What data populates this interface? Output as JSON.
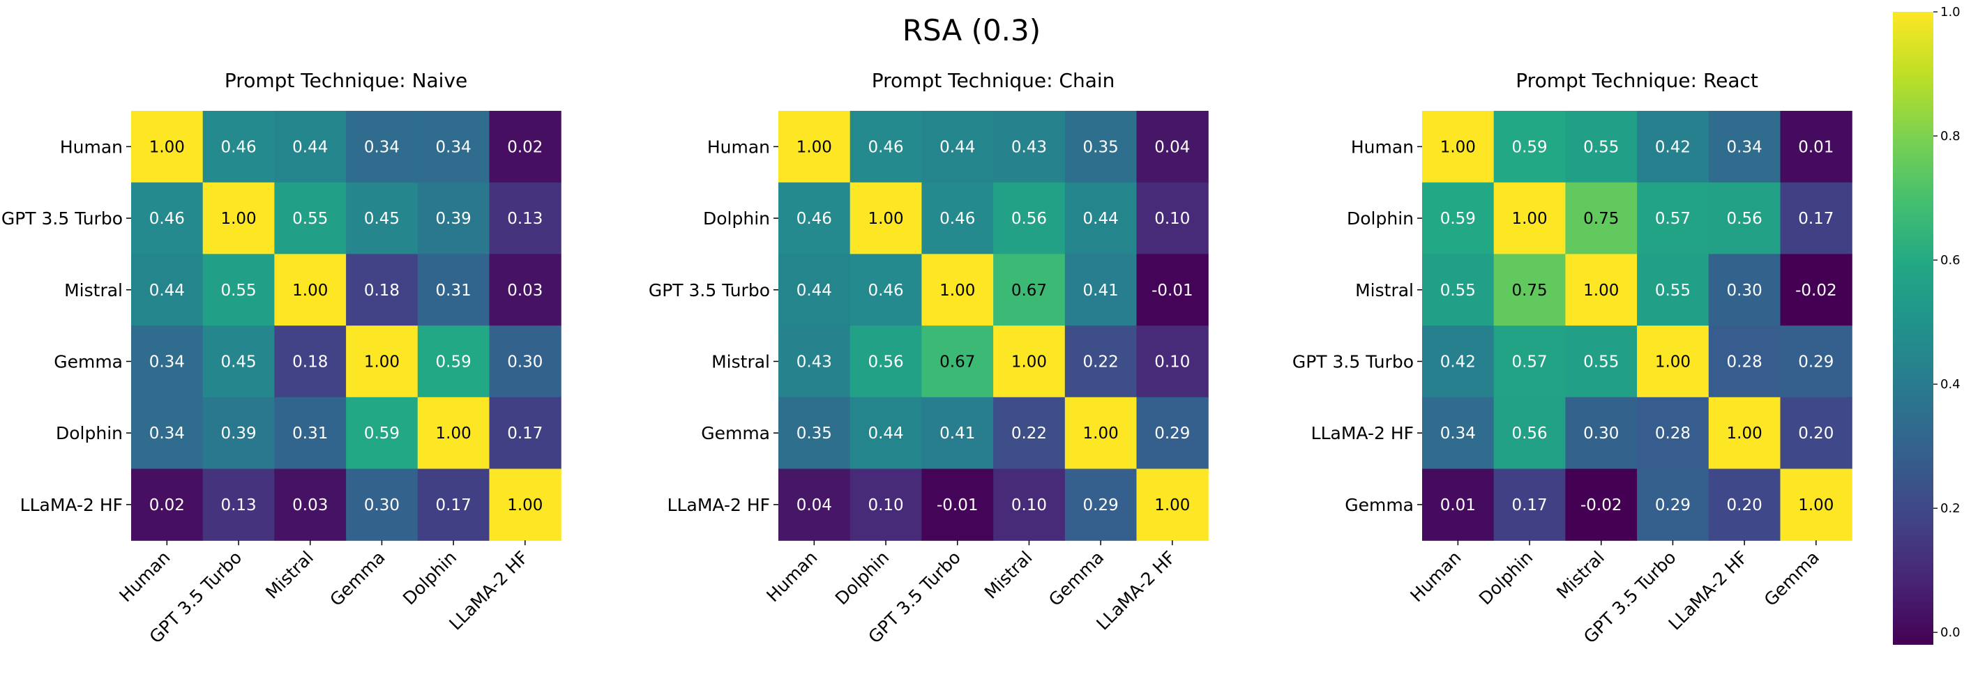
{
  "chart_data": [
    {
      "type": "heatmap",
      "suptitle": "RSA (0.3)",
      "title": "Prompt Technique: Naive",
      "rows": [
        "Human",
        "GPT 3.5 Turbo",
        "Mistral",
        "Gemma",
        "Dolphin",
        "LLaMA-2 HF"
      ],
      "cols": [
        "Human",
        "GPT 3.5 Turbo",
        "Mistral",
        "Gemma",
        "Dolphin",
        "LLaMA-2 HF"
      ],
      "values": [
        [
          1.0,
          0.46,
          0.44,
          0.34,
          0.34,
          0.02
        ],
        [
          0.46,
          1.0,
          0.55,
          0.45,
          0.39,
          0.13
        ],
        [
          0.44,
          0.55,
          1.0,
          0.18,
          0.31,
          0.03
        ],
        [
          0.34,
          0.45,
          0.18,
          1.0,
          0.59,
          0.3
        ],
        [
          0.34,
          0.39,
          0.31,
          0.59,
          1.0,
          0.17
        ],
        [
          0.02,
          0.13,
          0.03,
          0.3,
          0.17,
          1.0
        ]
      ],
      "value_format": "0.00",
      "colormap": "viridis",
      "vmin": -0.02,
      "vmax": 1.0
    },
    {
      "type": "heatmap",
      "title": "Prompt Technique: Chain",
      "rows": [
        "Human",
        "Dolphin",
        "GPT 3.5 Turbo",
        "Mistral",
        "Gemma",
        "LLaMA-2 HF"
      ],
      "cols": [
        "Human",
        "Dolphin",
        "GPT 3.5 Turbo",
        "Mistral",
        "Gemma",
        "LLaMA-2 HF"
      ],
      "values": [
        [
          1.0,
          0.46,
          0.44,
          0.43,
          0.35,
          0.04
        ],
        [
          0.46,
          1.0,
          0.46,
          0.56,
          0.44,
          0.1
        ],
        [
          0.44,
          0.46,
          1.0,
          0.67,
          0.41,
          -0.01
        ],
        [
          0.43,
          0.56,
          0.67,
          1.0,
          0.22,
          0.1
        ],
        [
          0.35,
          0.44,
          0.41,
          0.22,
          1.0,
          0.29
        ],
        [
          0.04,
          0.1,
          -0.01,
          0.1,
          0.29,
          1.0
        ]
      ],
      "value_format": "0.00",
      "colormap": "viridis",
      "vmin": -0.02,
      "vmax": 1.0
    },
    {
      "type": "heatmap",
      "title": "Prompt Technique: React",
      "rows": [
        "Human",
        "Dolphin",
        "Mistral",
        "GPT 3.5 Turbo",
        "LLaMA-2 HF",
        "Gemma"
      ],
      "cols": [
        "Human",
        "Dolphin",
        "Mistral",
        "GPT 3.5 Turbo",
        "LLaMA-2 HF",
        "Gemma"
      ],
      "values": [
        [
          1.0,
          0.59,
          0.55,
          0.42,
          0.34,
          0.01
        ],
        [
          0.59,
          1.0,
          0.75,
          0.57,
          0.56,
          0.17
        ],
        [
          0.55,
          0.75,
          1.0,
          0.55,
          0.3,
          -0.02
        ],
        [
          0.42,
          0.57,
          0.55,
          1.0,
          0.28,
          0.29
        ],
        [
          0.34,
          0.56,
          0.3,
          0.28,
          1.0,
          0.2
        ],
        [
          0.01,
          0.17,
          -0.02,
          0.29,
          0.2,
          1.0
        ]
      ],
      "value_format": "0.00",
      "colormap": "viridis",
      "vmin": -0.02,
      "vmax": 1.0
    }
  ],
  "colorbar": {
    "ticks": [
      "1.0",
      "0.8",
      "0.6",
      "0.4",
      "0.2",
      "0.0"
    ],
    "tick_values": [
      1.0,
      0.8,
      0.6,
      0.4,
      0.2,
      0.0
    ],
    "vmin": -0.02,
    "vmax": 1.0
  }
}
